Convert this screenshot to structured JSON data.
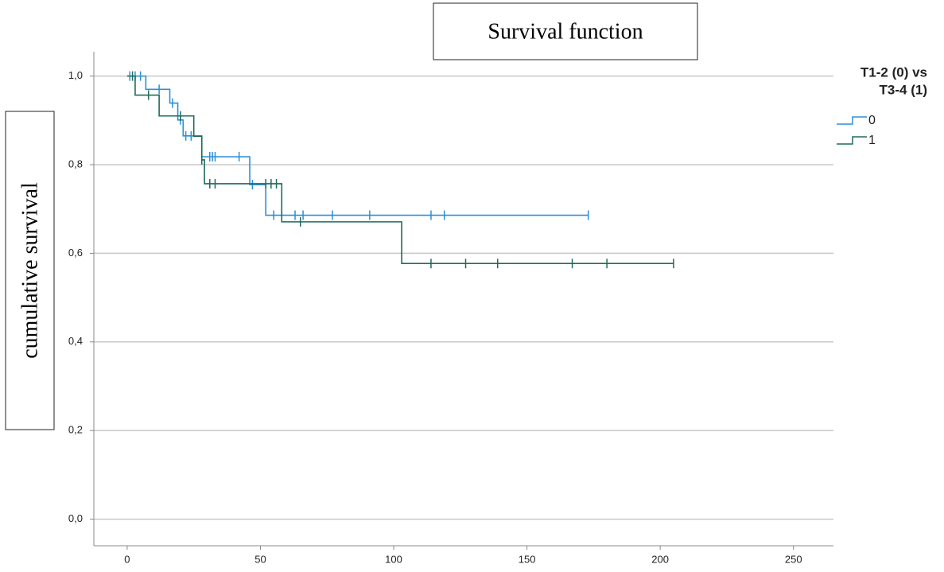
{
  "chart_data": {
    "type": "survival",
    "title": "Survival function",
    "y_label": "cumulative survival",
    "legend_title": [
      "T1-2 (0) vs",
      "T3-4 (1)"
    ],
    "xlim": [
      -12.5,
      265
    ],
    "ylim": [
      -0.06,
      1.055
    ],
    "xticks": [
      0,
      50,
      100,
      150,
      200,
      250
    ],
    "yticks": [
      {
        "value": 0,
        "label": "0,0"
      },
      {
        "value": 0.2,
        "label": "0,2"
      },
      {
        "value": 0.4,
        "label": "0,4"
      },
      {
        "value": 0.6,
        "label": "0,6"
      },
      {
        "value": 0.8,
        "label": "0,8"
      },
      {
        "value": 1,
        "label": "1,0"
      }
    ],
    "grid": true,
    "series": [
      {
        "name": "0",
        "color": "#2b8fd8",
        "x": [
          0,
          7,
          16,
          19,
          21,
          28,
          46,
          52,
          173
        ],
        "values": [
          1.0,
          0.97,
          0.939,
          0.901,
          0.865,
          0.818,
          0.755,
          0.686,
          0.686
        ],
        "censored_x": [
          1,
          3,
          5,
          12,
          17,
          20,
          22,
          24,
          31,
          32,
          33,
          42,
          47,
          55,
          63,
          66,
          77,
          91,
          114,
          119,
          173
        ],
        "censored_values": [
          1.0,
          1.0,
          1.0,
          0.97,
          0.939,
          0.901,
          0.865,
          0.865,
          0.818,
          0.818,
          0.818,
          0.818,
          0.755,
          0.686,
          0.686,
          0.686,
          0.686,
          0.686,
          0.686,
          0.686,
          0.686
        ]
      },
      {
        "name": "1",
        "color": "#1e6b5c",
        "x": [
          0,
          3,
          12,
          25,
          28,
          29,
          58,
          103,
          205
        ],
        "values": [
          1.0,
          0.957,
          0.91,
          0.864,
          0.811,
          0.757,
          0.671,
          0.577,
          0.577
        ],
        "censored_x": [
          2,
          8,
          20,
          28,
          31,
          33,
          52,
          54,
          56,
          65,
          114,
          127,
          139,
          167,
          180,
          205
        ],
        "censored_values": [
          1.0,
          0.957,
          0.91,
          0.811,
          0.757,
          0.757,
          0.757,
          0.757,
          0.757,
          0.671,
          0.577,
          0.577,
          0.577,
          0.577,
          0.577,
          0.577
        ]
      }
    ]
  }
}
